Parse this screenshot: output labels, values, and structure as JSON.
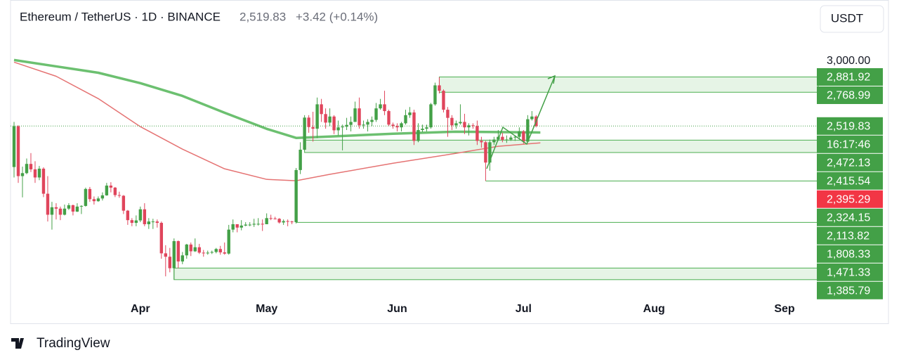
{
  "header": {
    "symbol": "Ethereum / TetherUS · 1D · BINANCE",
    "price": "2,519.83",
    "change": "+3.42 (+0.14%)",
    "currency": "USDT"
  },
  "footer": {
    "brand": "TradingView"
  },
  "chart_data": {
    "type": "candlestick",
    "up_color": "#43a047",
    "down_color": "#e0455c",
    "ohlc": [
      [
        2217,
        2550,
        2140,
        2518
      ],
      [
        2518,
        2525,
        2100,
        2150
      ],
      [
        2150,
        2220,
        1993,
        2172
      ],
      [
        2172,
        2280,
        2164,
        2240
      ],
      [
        2240,
        2320,
        2180,
        2200
      ],
      [
        2200,
        2260,
        2100,
        2140
      ],
      [
        2140,
        2225,
        2120,
        2205
      ],
      [
        2205,
        2215,
        1995,
        2020
      ],
      [
        2020,
        2150,
        1815,
        1865
      ],
      [
        1865,
        1960,
        1755,
        1920
      ],
      [
        1920,
        1950,
        1830,
        1910
      ],
      [
        1910,
        1925,
        1825,
        1865
      ],
      [
        1865,
        1940,
        1860,
        1910
      ],
      [
        1910,
        1950,
        1900,
        1935
      ],
      [
        1935,
        1940,
        1860,
        1888
      ],
      [
        1888,
        1950,
        1885,
        1925
      ],
      [
        1925,
        1935,
        1870,
        1930
      ],
      [
        1930,
        2065,
        1925,
        2055
      ],
      [
        2055,
        2070,
        1960,
        1980
      ],
      [
        1980,
        2000,
        1940,
        1965
      ],
      [
        1965,
        2000,
        1960,
        1985
      ],
      [
        1985,
        2030,
        1970,
        2008
      ],
      [
        2008,
        2100,
        2005,
        2080
      ],
      [
        2080,
        2105,
        2030,
        2065
      ],
      [
        2065,
        2070,
        1995,
        2010
      ],
      [
        2010,
        2035,
        1990,
        2005
      ],
      [
        2005,
        2010,
        1870,
        1895
      ],
      [
        1895,
        1900,
        1790,
        1825
      ],
      [
        1825,
        1840,
        1780,
        1805
      ],
      [
        1805,
        1860,
        1780,
        1823
      ],
      [
        1823,
        1925,
        1810,
        1905
      ],
      [
        1905,
        1950,
        1780,
        1795
      ],
      [
        1795,
        1840,
        1760,
        1815
      ],
      [
        1815,
        1835,
        1760,
        1815
      ],
      [
        1815,
        1830,
        1770,
        1805
      ],
      [
        1805,
        1815,
        1540,
        1580
      ],
      [
        1580,
        1640,
        1410,
        1555
      ],
      [
        1555,
        1620,
        1440,
        1470
      ],
      [
        1470,
        1690,
        1385,
        1670
      ],
      [
        1670,
        1675,
        1470,
        1520
      ],
      [
        1520,
        1590,
        1500,
        1565
      ],
      [
        1565,
        1650,
        1540,
        1645
      ],
      [
        1645,
        1660,
        1560,
        1595
      ],
      [
        1595,
        1690,
        1590,
        1625
      ],
      [
        1625,
        1650,
        1575,
        1585
      ],
      [
        1585,
        1605,
        1555,
        1580
      ],
      [
        1580,
        1600,
        1570,
        1585
      ],
      [
        1585,
        1600,
        1575,
        1590
      ],
      [
        1590,
        1620,
        1580,
        1612
      ],
      [
        1612,
        1635,
        1570,
        1587
      ],
      [
        1587,
        1660,
        1570,
        1578
      ],
      [
        1578,
        1790,
        1570,
        1755
      ],
      [
        1755,
        1830,
        1735,
        1795
      ],
      [
        1795,
        1795,
        1735,
        1770
      ],
      [
        1770,
        1825,
        1750,
        1785
      ],
      [
        1785,
        1810,
        1780,
        1792
      ],
      [
        1792,
        1810,
        1780,
        1792
      ],
      [
        1792,
        1835,
        1775,
        1798
      ],
      [
        1798,
        1840,
        1785,
        1798
      ],
      [
        1798,
        1830,
        1745,
        1795
      ],
      [
        1795,
        1875,
        1795,
        1840
      ],
      [
        1840,
        1865,
        1825,
        1837
      ],
      [
        1837,
        1850,
        1830,
        1835
      ],
      [
        1835,
        1840,
        1800,
        1808
      ],
      [
        1808,
        1830,
        1790,
        1818
      ],
      [
        1818,
        1830,
        1780,
        1815
      ],
      [
        1815,
        1820,
        1795,
        1810
      ],
      [
        1810,
        2210,
        1800,
        2195
      ],
      [
        2195,
        2400,
        2165,
        2345
      ],
      [
        2345,
        2600,
        2340,
        2582
      ],
      [
        2582,
        2600,
        2470,
        2512
      ],
      [
        2512,
        2625,
        2405,
        2500
      ],
      [
        2500,
        2730,
        2430,
        2680
      ],
      [
        2680,
        2720,
        2550,
        2608
      ],
      [
        2608,
        2650,
        2500,
        2545
      ],
      [
        2545,
        2650,
        2520,
        2590
      ],
      [
        2590,
        2600,
        2460,
        2488
      ],
      [
        2488,
        2560,
        2450,
        2510
      ],
      [
        2510,
        2530,
        2340,
        2515
      ],
      [
        2515,
        2580,
        2490,
        2528
      ],
      [
        2528,
        2590,
        2480,
        2550
      ],
      [
        2550,
        2700,
        2550,
        2650
      ],
      [
        2650,
        2730,
        2500,
        2525
      ],
      [
        2525,
        2560,
        2500,
        2530
      ],
      [
        2530,
        2570,
        2480,
        2550
      ],
      [
        2550,
        2590,
        2520,
        2565
      ],
      [
        2565,
        2690,
        2550,
        2650
      ],
      [
        2650,
        2720,
        2640,
        2680
      ],
      [
        2680,
        2780,
        2600,
        2630
      ],
      [
        2630,
        2640,
        2520,
        2530
      ],
      [
        2530,
        2545,
        2500,
        2520
      ],
      [
        2520,
        2540,
        2480,
        2510
      ],
      [
        2510,
        2550,
        2480,
        2540
      ],
      [
        2540,
        2640,
        2530,
        2600
      ],
      [
        2600,
        2660,
        2580,
        2620
      ],
      [
        2620,
        2640,
        2380,
        2410
      ],
      [
        2410,
        2540,
        2400,
        2490
      ],
      [
        2490,
        2530,
        2475,
        2500
      ],
      [
        2500,
        2530,
        2480,
        2510
      ],
      [
        2510,
        2690,
        2500,
        2680
      ],
      [
        2680,
        2840,
        2670,
        2820
      ],
      [
        2820,
        2880,
        2760,
        2780
      ],
      [
        2780,
        2790,
        2620,
        2640
      ],
      [
        2640,
        2660,
        2440,
        2580
      ],
      [
        2580,
        2600,
        2490,
        2525
      ],
      [
        2525,
        2560,
        2500,
        2540
      ],
      [
        2540,
        2680,
        2530,
        2550
      ],
      [
        2550,
        2610,
        2460,
        2510
      ],
      [
        2510,
        2540,
        2450,
        2525
      ],
      [
        2525,
        2540,
        2500,
        2520
      ],
      [
        2520,
        2560,
        2380,
        2410
      ],
      [
        2410,
        2440,
        2360,
        2400
      ],
      [
        2400,
        2410,
        2115,
        2250
      ],
      [
        2250,
        2420,
        2190,
        2400
      ],
      [
        2400,
        2440,
        2380,
        2420
      ],
      [
        2420,
        2490,
        2410,
        2440
      ],
      [
        2440,
        2470,
        2400,
        2418
      ],
      [
        2418,
        2450,
        2395,
        2420
      ],
      [
        2420,
        2450,
        2410,
        2435
      ],
      [
        2435,
        2450,
        2410,
        2440
      ],
      [
        2440,
        2510,
        2420,
        2480
      ],
      [
        2480,
        2490,
        2390,
        2405
      ],
      [
        2405,
        2600,
        2400,
        2570
      ],
      [
        2570,
        2630,
        2560,
        2590
      ],
      [
        2590,
        2600,
        2510,
        2519.83
      ]
    ],
    "series": [
      {
        "color": "#6cc070",
        "width": 3.5,
        "x": [
          0,
          10,
          20,
          30,
          40,
          50,
          60,
          67,
          75,
          90,
          105,
          125
        ],
        "values": [
          3007,
          2960,
          2913,
          2836,
          2742,
          2618,
          2499,
          2432,
          2442,
          2463,
          2478,
          2472.13
        ]
      },
      {
        "color": "#e57373",
        "width": 1.5,
        "x": [
          0,
          10,
          20,
          30,
          40,
          50,
          60,
          67,
          75,
          90,
          105,
          115,
          125
        ],
        "values": [
          2991,
          2887,
          2722,
          2515,
          2349,
          2204,
          2126,
          2116,
          2163,
          2245,
          2318,
          2370,
          2395.29
        ]
      }
    ],
    "zones": [
      {
        "from": 101,
        "low": 2768.99,
        "high": 2881.92
      },
      {
        "from": 69,
        "low": 2324.15,
        "high": 2415.54
      },
      {
        "from": 38,
        "low": 1385.79,
        "high": 1471.33
      }
    ],
    "levels": [
      {
        "from": 112,
        "value": 2113.82
      },
      {
        "from": 67,
        "value": 1808.33
      }
    ],
    "price_labels": [
      {
        "value": 2881.92,
        "label": "2,881.92",
        "color": "#43a047"
      },
      {
        "value": 2768.99,
        "label": "2,768.99",
        "color": "#43a047"
      },
      {
        "value": 2519.83,
        "label": "2,519.83",
        "color": "#43a047"
      },
      {
        "label": "16:17:46",
        "color": "#43a047"
      },
      {
        "value": 2472.13,
        "label": "2,472.13",
        "color": "#43a047"
      },
      {
        "value": 2415.54,
        "label": "2,415.54",
        "color": "#43a047"
      },
      {
        "value": 2395.29,
        "label": "2,395.29",
        "color": "#f23645"
      },
      {
        "value": 2324.15,
        "label": "2,324.15",
        "color": "#43a047"
      },
      {
        "value": 2113.82,
        "label": "2,113.82",
        "color": "#43a047"
      },
      {
        "value": 1808.33,
        "label": "1,808.33",
        "color": "#43a047"
      },
      {
        "value": 1471.33,
        "label": "1,471.33",
        "color": "#43a047"
      },
      {
        "value": 1385.79,
        "label": "1,385.79",
        "color": "#43a047"
      }
    ],
    "xlim": [
      -1,
      191
    ],
    "xticks": [
      {
        "value": 30,
        "label": "Apr"
      },
      {
        "value": 60,
        "label": "May"
      },
      {
        "value": 91,
        "label": "Jun"
      },
      {
        "value": 121,
        "label": "Jul"
      },
      {
        "value": 152,
        "label": "Aug"
      },
      {
        "value": 183,
        "label": "Sep"
      }
    ],
    "ylim": [
      1250,
      3450
    ],
    "yticks": [
      {
        "value": 3000,
        "label": "3,000.00"
      }
    ]
  }
}
